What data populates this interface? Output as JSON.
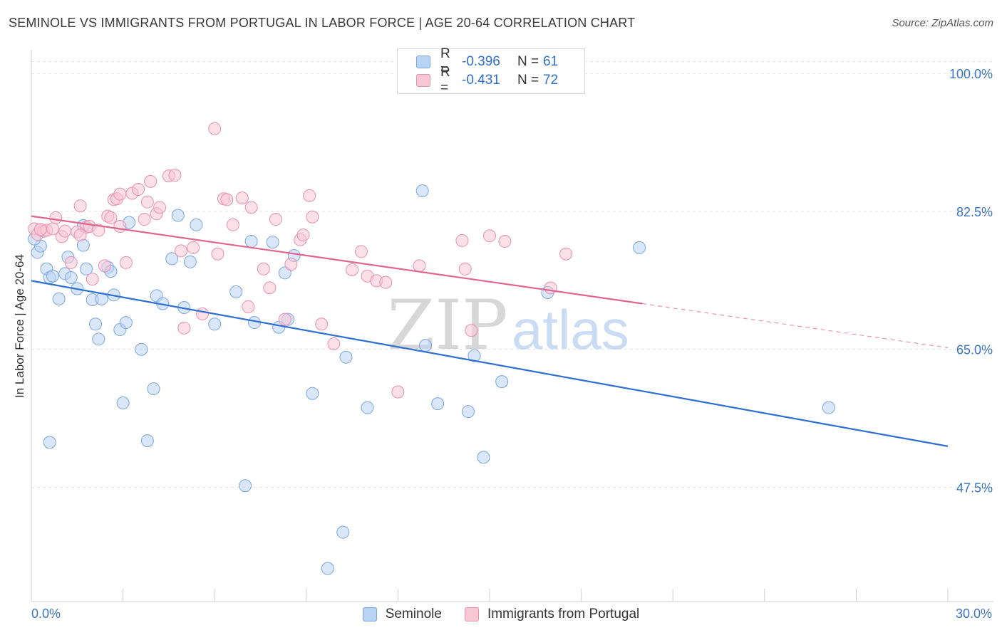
{
  "title": "SEMINOLE VS IMMIGRANTS FROM PORTUGAL IN LABOR FORCE | AGE 20-64 CORRELATION CHART",
  "source": "Source: ZipAtlas.com",
  "watermark": {
    "zip": "ZIP",
    "atlas": "atlas"
  },
  "colors": {
    "seminole_fill": "#b9d3f4",
    "seminole_stroke": "#7aa6e0",
    "seminole_line": "#2f6fd0",
    "portugal_fill": "#f8c7d6",
    "portugal_stroke": "#e98fb0",
    "portugal_line": "#e06690",
    "tick_text": "#3a75c4",
    "grid": "#e2e2e2"
  },
  "legend_top": {
    "rows": [
      {
        "r_label": "R =",
        "r_value": "-0.396",
        "n_label": "N =",
        "n_value": "61"
      },
      {
        "r_label": "R =",
        "r_value": "-0.431",
        "n_label": "N =",
        "n_value": "72"
      }
    ]
  },
  "legend_bottom": {
    "seminole": "Seminole",
    "portugal": "Immigrants from Portugal"
  },
  "chart_data": {
    "type": "scatter",
    "title": "SEMINOLE VS IMMIGRANTS FROM PORTUGAL IN LABOR FORCE | AGE 20-64 CORRELATION CHART",
    "xlabel": "",
    "ylabel": "In Labor Force | Age 20-64",
    "xlim": [
      0,
      30
    ],
    "ylim": [
      33,
      103
    ],
    "x_tick_labels": [
      "0.0%",
      "30.0%"
    ],
    "y_ticks": [
      100,
      82.5,
      65,
      47.5
    ],
    "y_tick_labels": [
      "100.0%",
      "82.5%",
      "65.0%",
      "47.5%"
    ],
    "grid": true,
    "legend_position": "top-center",
    "series": [
      {
        "name": "Seminole",
        "R": -0.396,
        "N": 61,
        "trend": {
          "x": [
            0,
            30
          ],
          "y": [
            73.7,
            52.7
          ]
        },
        "points": [
          [
            0.2,
            77.3
          ],
          [
            0.3,
            78.1
          ],
          [
            0.5,
            75.2
          ],
          [
            0.6,
            74.1
          ],
          [
            0.7,
            74.3
          ],
          [
            0.9,
            71.4
          ],
          [
            1.1,
            74.6
          ],
          [
            1.2,
            76.7
          ],
          [
            1.3,
            74.1
          ],
          [
            1.5,
            72.7
          ],
          [
            1.7,
            80.7
          ],
          [
            1.7,
            78.2
          ],
          [
            1.8,
            75.2
          ],
          [
            2.0,
            71.3
          ],
          [
            2.1,
            68.2
          ],
          [
            2.2,
            66.3
          ],
          [
            2.3,
            71.4
          ],
          [
            2.5,
            75.4
          ],
          [
            2.6,
            74.9
          ],
          [
            2.7,
            71.9
          ],
          [
            2.9,
            67.5
          ],
          [
            3.0,
            58.2
          ],
          [
            3.1,
            68.4
          ],
          [
            3.2,
            81.1
          ],
          [
            3.6,
            65.0
          ],
          [
            4.0,
            60.0
          ],
          [
            4.1,
            71.8
          ],
          [
            4.3,
            70.8
          ],
          [
            4.6,
            76.5
          ],
          [
            4.8,
            82.0
          ],
          [
            5.0,
            70.3
          ],
          [
            5.2,
            76.1
          ],
          [
            5.4,
            80.8
          ],
          [
            6.0,
            68.2
          ],
          [
            6.7,
            72.3
          ],
          [
            7.0,
            47.7
          ],
          [
            7.2,
            78.7
          ],
          [
            7.3,
            68.4
          ],
          [
            7.9,
            78.6
          ],
          [
            8.1,
            67.8
          ],
          [
            8.3,
            74.7
          ],
          [
            8.4,
            68.8
          ],
          [
            8.6,
            76.9
          ],
          [
            9.2,
            59.4
          ],
          [
            9.7,
            37.2
          ],
          [
            10.2,
            41.8
          ],
          [
            10.3,
            64.0
          ],
          [
            11.0,
            57.6
          ],
          [
            12.8,
            85.1
          ],
          [
            12.9,
            65.5
          ],
          [
            13.3,
            58.1
          ],
          [
            14.3,
            57.1
          ],
          [
            14.5,
            64.2
          ],
          [
            14.8,
            51.3
          ],
          [
            15.4,
            60.9
          ],
          [
            16.9,
            72.2
          ],
          [
            19.9,
            77.9
          ],
          [
            26.1,
            57.6
          ],
          [
            0.6,
            53.2
          ],
          [
            3.8,
            53.4
          ],
          [
            0.1,
            79.0
          ]
        ]
      },
      {
        "name": "Immigrants from Portugal",
        "R": -0.431,
        "N": 72,
        "trend": {
          "x": [
            0,
            20
          ],
          "y": [
            81.9,
            70.8
          ]
        },
        "trend_dashed": {
          "x": [
            20,
            30
          ],
          "y": [
            70.8,
            65.2
          ]
        },
        "points": [
          [
            0.1,
            80.3
          ],
          [
            0.2,
            79.6
          ],
          [
            0.3,
            80.2
          ],
          [
            0.4,
            80.0
          ],
          [
            0.5,
            80.1
          ],
          [
            0.7,
            80.3
          ],
          [
            0.8,
            81.7
          ],
          [
            1.0,
            79.3
          ],
          [
            1.1,
            80.0
          ],
          [
            1.3,
            76.0
          ],
          [
            1.5,
            79.9
          ],
          [
            1.6,
            83.2
          ],
          [
            1.8,
            80.5
          ],
          [
            1.9,
            80.6
          ],
          [
            2.0,
            73.9
          ],
          [
            2.2,
            80.1
          ],
          [
            2.4,
            75.6
          ],
          [
            2.5,
            81.9
          ],
          [
            2.6,
            81.7
          ],
          [
            2.7,
            84.0
          ],
          [
            2.8,
            84.1
          ],
          [
            2.9,
            84.7
          ],
          [
            3.1,
            76.0
          ],
          [
            3.3,
            84.8
          ],
          [
            3.5,
            85.3
          ],
          [
            3.7,
            81.5
          ],
          [
            3.8,
            83.7
          ],
          [
            3.9,
            86.3
          ],
          [
            4.1,
            82.2
          ],
          [
            4.2,
            83.0
          ],
          [
            4.5,
            87.0
          ],
          [
            4.7,
            87.1
          ],
          [
            4.9,
            77.5
          ],
          [
            5.0,
            67.7
          ],
          [
            5.3,
            77.9
          ],
          [
            5.6,
            69.5
          ],
          [
            6.0,
            93.0
          ],
          [
            6.1,
            77.1
          ],
          [
            6.3,
            84.1
          ],
          [
            6.4,
            84.0
          ],
          [
            6.6,
            80.8
          ],
          [
            6.9,
            84.2
          ],
          [
            7.1,
            70.4
          ],
          [
            7.2,
            83.0
          ],
          [
            7.6,
            75.2
          ],
          [
            7.8,
            72.8
          ],
          [
            8.0,
            81.5
          ],
          [
            8.3,
            68.8
          ],
          [
            8.5,
            75.8
          ],
          [
            8.8,
            78.9
          ],
          [
            8.9,
            79.5
          ],
          [
            9.1,
            84.5
          ],
          [
            9.2,
            81.8
          ],
          [
            9.5,
            68.2
          ],
          [
            9.9,
            65.7
          ],
          [
            10.5,
            75.1
          ],
          [
            10.8,
            77.4
          ],
          [
            11.0,
            74.3
          ],
          [
            11.3,
            73.7
          ],
          [
            11.6,
            73.5
          ],
          [
            12.0,
            59.6
          ],
          [
            12.7,
            75.6
          ],
          [
            14.1,
            78.8
          ],
          [
            14.2,
            75.2
          ],
          [
            14.4,
            67.4
          ],
          [
            15.0,
            79.4
          ],
          [
            15.5,
            78.7
          ],
          [
            17.0,
            72.8
          ],
          [
            17.5,
            77.1
          ],
          [
            0.3,
            80.2
          ],
          [
            1.6,
            79.5
          ],
          [
            2.9,
            80.6
          ]
        ]
      }
    ]
  }
}
